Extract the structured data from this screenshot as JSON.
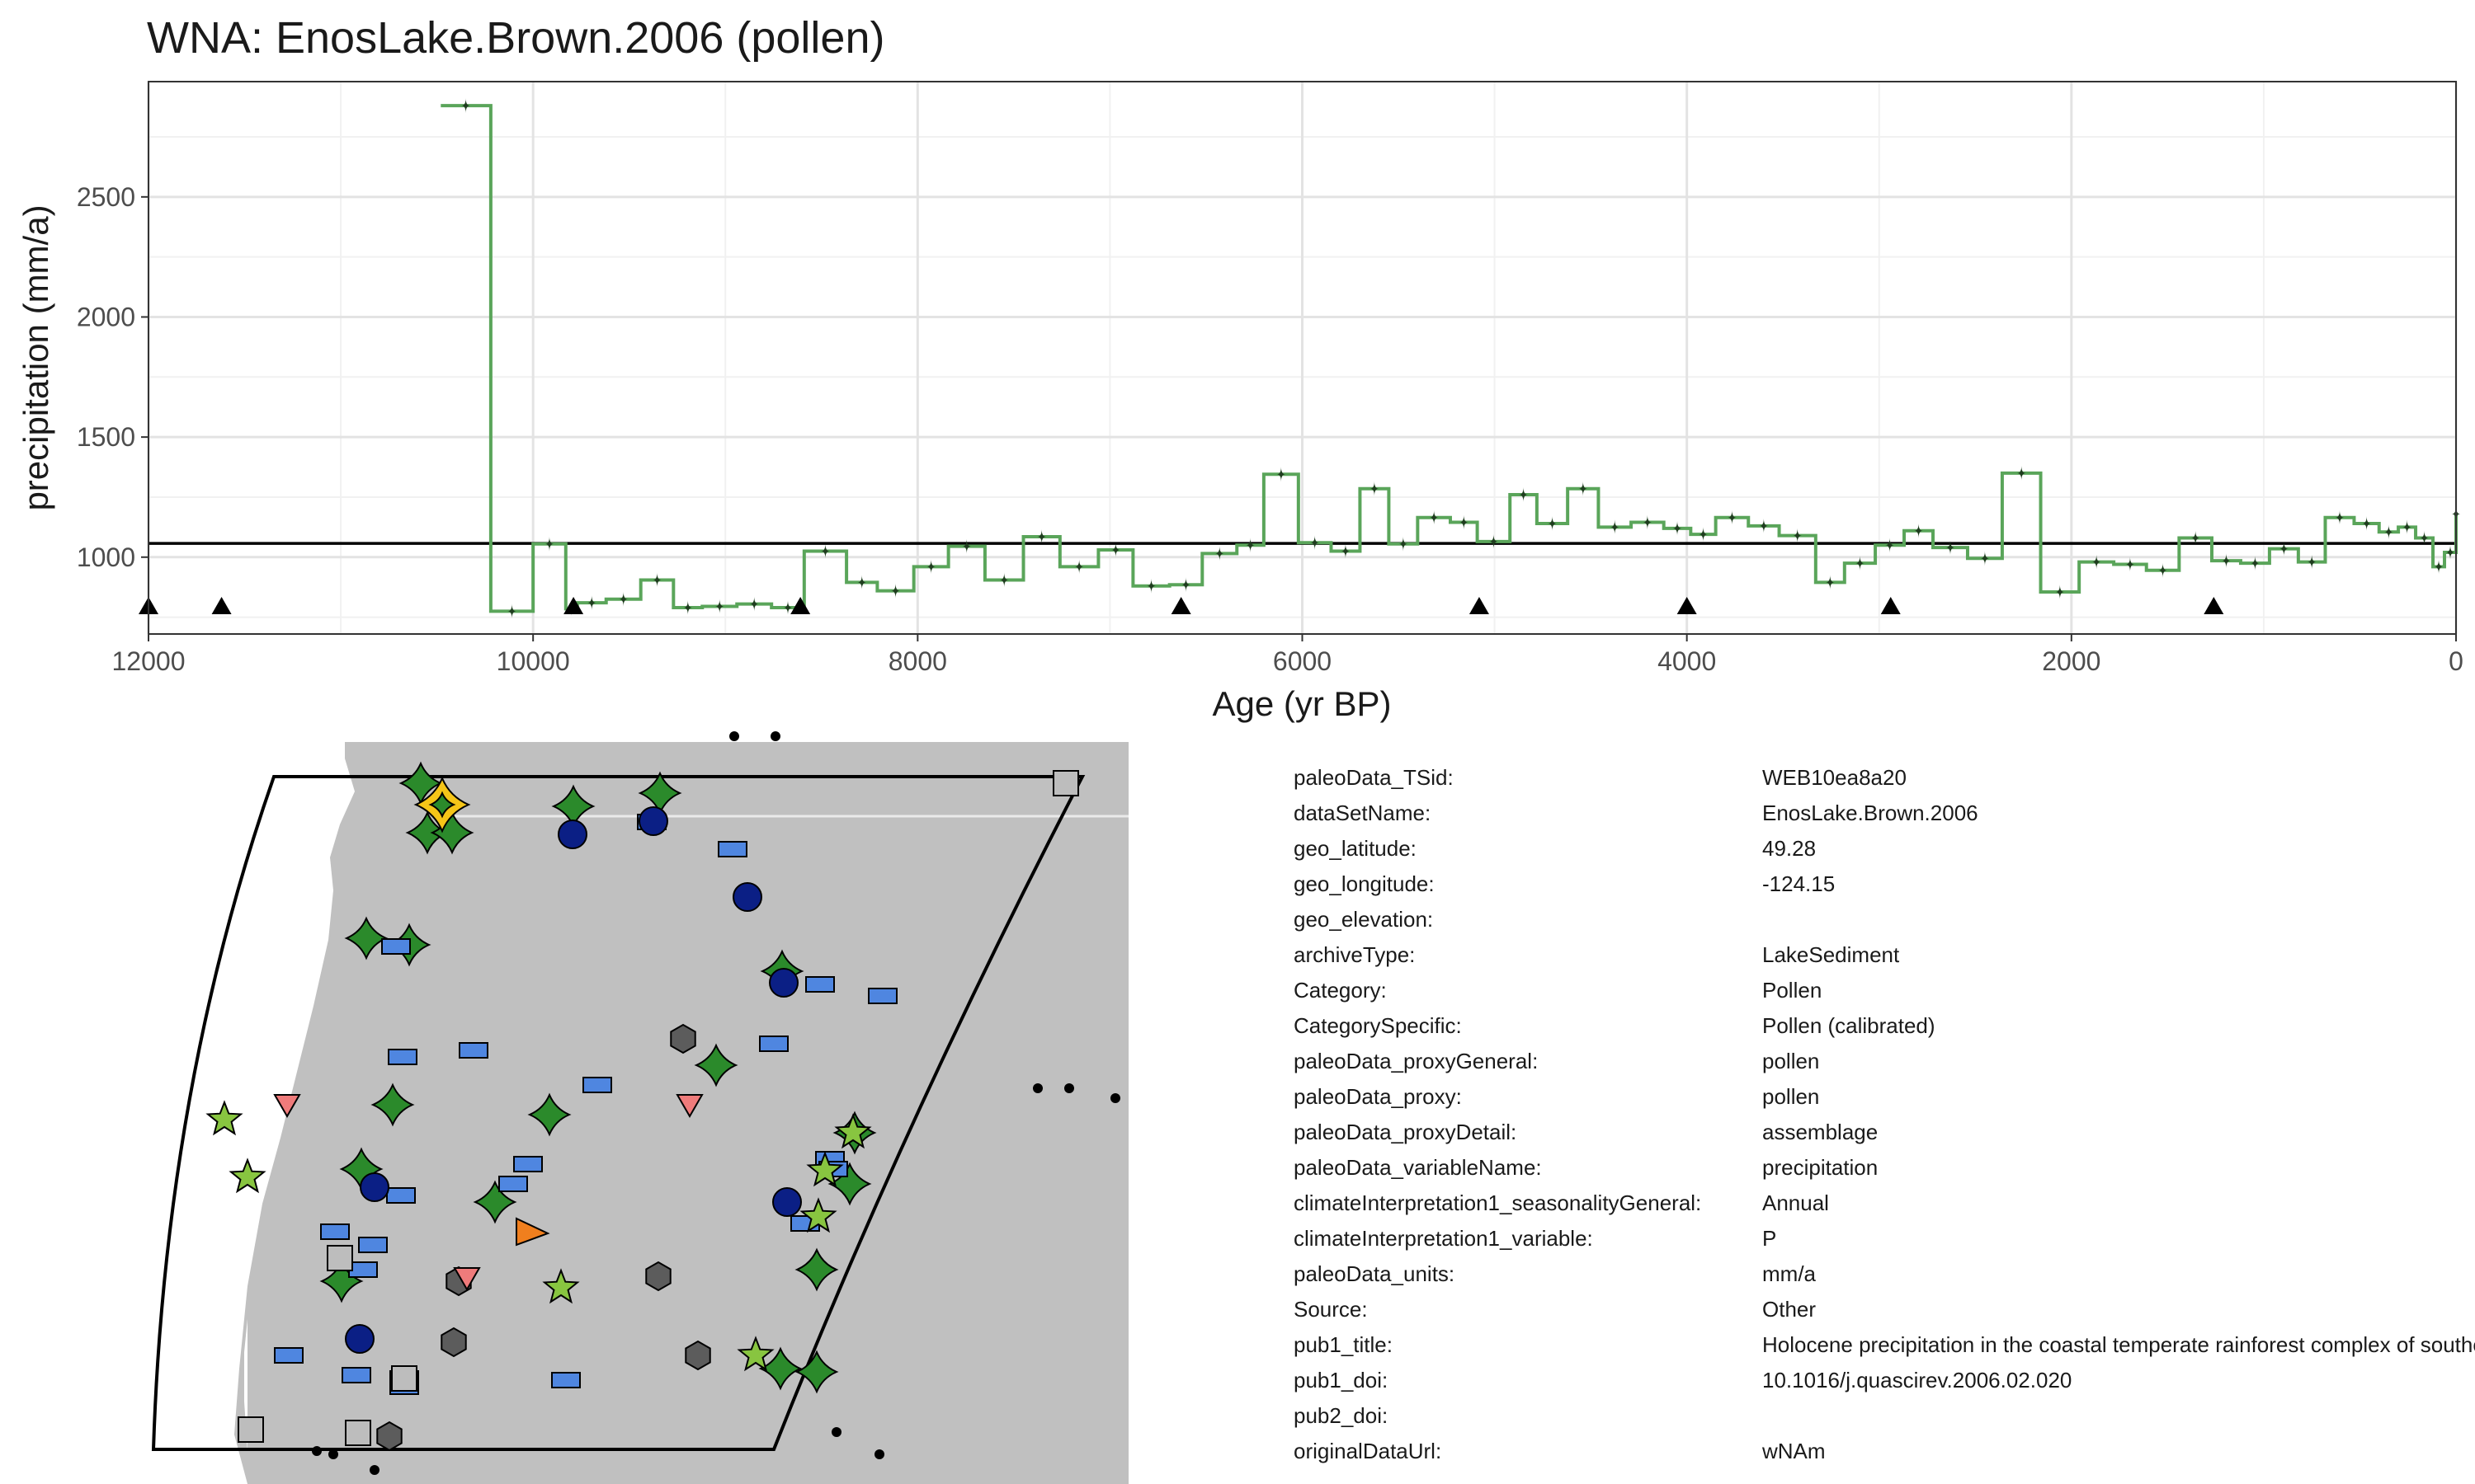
{
  "title": "WNA: EnosLake.Brown.2006 (pollen)",
  "chart_data": {
    "type": "line",
    "step": true,
    "title": "WNA: EnosLake.Brown.2006 (pollen)",
    "xlabel": "Age (yr BP)",
    "ylabel": "precipitation (mm/a)",
    "xlim": [
      12000,
      0
    ],
    "x_reversed": true,
    "ylim": [
      680,
      2980
    ],
    "x_ticks": [
      12000,
      10000,
      8000,
      6000,
      4000,
      2000,
      0
    ],
    "y_ticks": [
      1000,
      1500,
      2000,
      2500
    ],
    "grid": true,
    "reference_line": 1057,
    "line_color": "#5aa55a",
    "marker_color": "#1f3d1f",
    "triangle_color": "#000000",
    "series": [
      {
        "x": [
          10480,
          10220,
          10000,
          9830,
          9770,
          9620,
          9440,
          9270,
          9120,
          8940,
          8760,
          8590,
          8370,
          8210,
          8020,
          7840,
          7650,
          7450,
          7260,
          7060,
          6880,
          6690,
          6520,
          6340,
          6200,
          6020,
          5850,
          5700,
          5550,
          5400,
          5230,
          5090,
          4920,
          4780,
          4620,
          4460,
          4290,
          4120,
          3980,
          3850,
          3680,
          3520,
          3330,
          3180,
          3020,
          2870,
          2720,
          2540,
          2360,
          2160,
          1960,
          1780,
          1610,
          1440,
          1270,
          1120,
          970,
          820,
          680,
          530,
          400,
          300,
          210,
          120,
          60,
          0
        ],
        "y": [
          2880,
          775,
          1055,
          785,
          810,
          825,
          905,
          790,
          795,
          805,
          790,
          1025,
          895,
          860,
          960,
          1045,
          905,
          1085,
          960,
          1030,
          880,
          885,
          1015,
          1050,
          1345,
          1060,
          1025,
          1285,
          1055,
          1165,
          1145,
          1065,
          1260,
          1140,
          1285,
          1125,
          1145,
          1120,
          1095,
          1165,
          1130,
          1090,
          895,
          975,
          1050,
          1110,
          1040,
          995,
          1350,
          855,
          980,
          970,
          945,
          1080,
          985,
          975,
          1035,
          980,
          1165,
          1140,
          1105,
          1125,
          1080,
          960,
          1020,
          1180
        ]
      }
    ],
    "triangles_x": [
      12000,
      11620,
      9790,
      8610,
      6630,
      5080,
      4000,
      2940,
      1260
    ]
  },
  "map": {
    "land_color": "#c0c0c0",
    "site_colors": {
      "pollen": "#2b8a2b",
      "highlight": "#f5c518",
      "rect": "#4f86e0",
      "circle": "#0b1f85",
      "hexagon": "#5c5c5c",
      "star": "#88c540",
      "triangle_down": "#ef7b7b",
      "orange": "#f07f1e",
      "square": "#bdbdbd"
    }
  },
  "metadata": [
    {
      "key": "paleoData_TSid:",
      "value": "WEB10ea8a20"
    },
    {
      "key": "dataSetName:",
      "value": "EnosLake.Brown.2006"
    },
    {
      "key": "geo_latitude:",
      "value": "49.28"
    },
    {
      "key": "geo_longitude:",
      "value": "-124.15"
    },
    {
      "key": "geo_elevation:",
      "value": ""
    },
    {
      "key": "archiveType:",
      "value": "LakeSediment"
    },
    {
      "key": "Category:",
      "value": "Pollen"
    },
    {
      "key": "CategorySpecific:",
      "value": "Pollen (calibrated)"
    },
    {
      "key": "paleoData_proxyGeneral:",
      "value": "pollen"
    },
    {
      "key": "paleoData_proxy:",
      "value": "pollen"
    },
    {
      "key": "paleoData_proxyDetail:",
      "value": "assemblage"
    },
    {
      "key": "paleoData_variableName:",
      "value": "precipitation"
    },
    {
      "key": "climateInterpretation1_seasonalityGeneral:",
      "value": "Annual"
    },
    {
      "key": "climateInterpretation1_variable:",
      "value": "P"
    },
    {
      "key": "paleoData_units:",
      "value": "mm/a"
    },
    {
      "key": "Source:",
      "value": "Other"
    },
    {
      "key": "pub1_title:",
      "value": "Holocene precipitation in the coastal temperate rainforest complex of southern British Columbia, Canada"
    },
    {
      "key": "pub1_doi:",
      "value": "10.1016/j.quascirev.2006.02.020"
    },
    {
      "key": "pub2_doi:",
      "value": ""
    },
    {
      "key": "originalDataUrl:",
      "value": "wNAm"
    }
  ]
}
